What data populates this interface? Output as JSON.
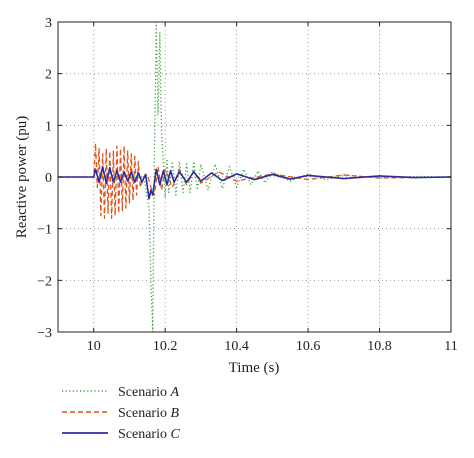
{
  "chart_data": {
    "type": "line",
    "xlabel": "Time (s)",
    "ylabel": "Reactive power (pu)",
    "xlim": [
      9.9,
      11
    ],
    "ylim": [
      -3,
      3
    ],
    "xticks": [
      10,
      10.2,
      10.4,
      10.6,
      10.8,
      11
    ],
    "yticks": [
      -3,
      -2,
      -1,
      0,
      1,
      2,
      3
    ],
    "xtick_labels": [
      "10",
      "10.2",
      "10.4",
      "10.6",
      "10.8",
      "11"
    ],
    "ytick_labels": [
      "−3",
      "−2",
      "−1",
      "0",
      "1",
      "2",
      "3"
    ],
    "grid": true,
    "legend_position": "below-left",
    "series": [
      {
        "name_prefix": "Scenario ",
        "name_letter": "A",
        "color": "#3fa23f",
        "style": "dotted",
        "x": [
          9.9,
          10.0,
          10.14,
          10.155,
          10.16,
          10.165,
          10.17,
          10.175,
          10.18,
          10.185,
          10.19,
          10.195,
          10.2,
          10.205,
          10.21,
          10.22,
          10.23,
          10.24,
          10.25,
          10.26,
          10.27,
          10.28,
          10.29,
          10.3,
          10.32,
          10.34,
          10.36,
          10.38,
          10.4,
          10.42,
          10.44,
          10.46,
          10.48,
          10.5,
          10.55,
          10.6,
          10.65,
          10.7,
          10.8,
          10.9,
          11.0
        ],
        "y": [
          0.0,
          0.0,
          0.0,
          -0.6,
          -2.0,
          -3.0,
          0.5,
          3.0,
          1.2,
          2.8,
          0.8,
          0.3,
          -0.4,
          0.35,
          -0.3,
          0.3,
          -0.35,
          0.3,
          -0.3,
          0.25,
          -0.3,
          0.3,
          -0.25,
          0.25,
          -0.25,
          0.25,
          -0.22,
          0.2,
          -0.2,
          0.15,
          -0.15,
          0.12,
          -0.12,
          0.1,
          -0.08,
          0.06,
          -0.05,
          0.04,
          -0.02,
          0.01,
          0.0
        ]
      },
      {
        "name_prefix": "Scenario ",
        "name_letter": "B",
        "color": "#e0561c",
        "style": "dashed",
        "x": [
          9.9,
          10.0,
          10.005,
          10.01,
          10.015,
          10.02,
          10.025,
          10.03,
          10.035,
          10.04,
          10.045,
          10.05,
          10.055,
          10.06,
          10.065,
          10.07,
          10.075,
          10.08,
          10.085,
          10.09,
          10.095,
          10.1,
          10.105,
          10.11,
          10.115,
          10.12,
          10.125,
          10.13,
          10.14,
          10.15,
          10.16,
          10.17,
          10.18,
          10.19,
          10.2,
          10.22,
          10.24,
          10.26,
          10.28,
          10.3,
          10.35,
          10.4,
          10.5,
          10.6,
          10.7,
          10.8,
          11.0
        ],
        "y": [
          0.0,
          0.0,
          0.65,
          -0.2,
          0.55,
          -0.75,
          0.45,
          -0.8,
          0.55,
          -0.7,
          0.5,
          -0.8,
          0.5,
          -0.75,
          0.6,
          -0.7,
          0.55,
          -0.65,
          0.6,
          -0.6,
          0.5,
          -0.5,
          0.45,
          -0.45,
          0.4,
          -0.35,
          0.3,
          -0.2,
          0.0,
          0.05,
          -0.2,
          -0.35,
          0.2,
          -0.25,
          0.15,
          -0.2,
          0.15,
          -0.15,
          0.12,
          -0.12,
          0.1,
          -0.08,
          0.06,
          -0.05,
          0.04,
          -0.02,
          0.0
        ]
      },
      {
        "name_prefix": "Scenario ",
        "name_letter": "C",
        "color": "#2c2c9c",
        "style": "solid",
        "x": [
          9.9,
          10.0,
          10.005,
          10.015,
          10.025,
          10.035,
          10.045,
          10.055,
          10.065,
          10.075,
          10.085,
          10.095,
          10.105,
          10.115,
          10.125,
          10.135,
          10.145,
          10.155,
          10.16,
          10.165,
          10.175,
          10.185,
          10.195,
          10.205,
          10.215,
          10.225,
          10.24,
          10.26,
          10.28,
          10.3,
          10.33,
          10.36,
          10.4,
          10.45,
          10.5,
          10.55,
          10.6,
          10.7,
          10.8,
          10.9,
          11.0
        ],
        "y": [
          0.0,
          0.0,
          0.15,
          -0.1,
          0.2,
          -0.12,
          0.18,
          -0.1,
          0.12,
          -0.1,
          0.1,
          -0.08,
          0.1,
          -0.1,
          0.08,
          -0.1,
          0.05,
          -0.42,
          -0.25,
          -0.35,
          0.15,
          -0.15,
          0.12,
          -0.15,
          0.12,
          -0.1,
          0.1,
          -0.1,
          0.1,
          -0.08,
          0.08,
          -0.07,
          0.06,
          -0.05,
          0.05,
          -0.04,
          0.03,
          -0.03,
          0.02,
          -0.01,
          0.0
        ]
      }
    ]
  }
}
